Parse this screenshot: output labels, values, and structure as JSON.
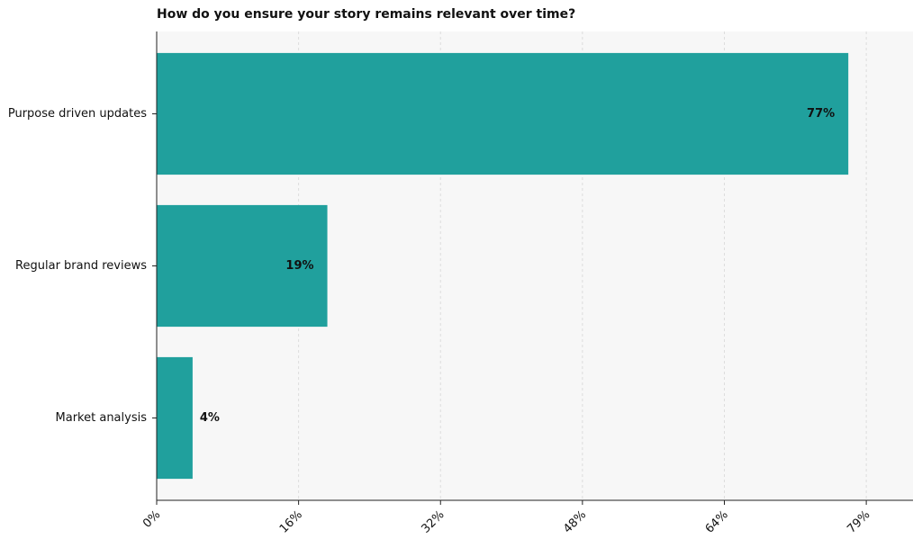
{
  "chart_data": {
    "type": "barh",
    "title": "How do you ensure your story remains relevant over time?",
    "categories": [
      "Purpose driven updates",
      "Regular brand reviews",
      "Market analysis"
    ],
    "values": [
      77,
      19,
      4
    ],
    "value_labels": [
      "77%",
      "19%",
      "4%"
    ],
    "color": "#20a09d",
    "xlim": [
      0,
      84.2
    ],
    "xticks": [
      {
        "value": 0,
        "label": "0%"
      },
      {
        "value": 15.8,
        "label": "16%"
      },
      {
        "value": 31.6,
        "label": "32%"
      },
      {
        "value": 47.4,
        "label": "48%"
      },
      {
        "value": 63.2,
        "label": "64%"
      },
      {
        "value": 79,
        "label": "79%"
      }
    ],
    "grid": true
  }
}
